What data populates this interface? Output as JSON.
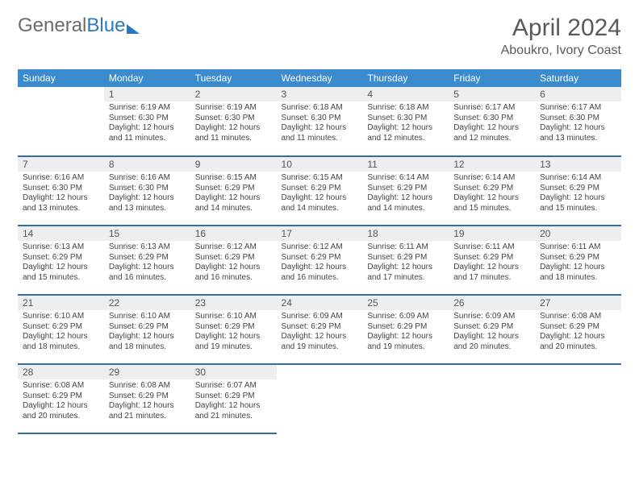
{
  "brand": {
    "part1": "General",
    "part2": "Blue"
  },
  "title": "April 2024",
  "location": "Aboukro, Ivory Coast",
  "colors": {
    "header_bg": "#3b8bcf",
    "rule": "#2f6fa8",
    "daynum_bg": "#eceeef"
  },
  "weekdays": [
    "Sunday",
    "Monday",
    "Tuesday",
    "Wednesday",
    "Thursday",
    "Friday",
    "Saturday"
  ],
  "weeks": [
    [
      null,
      {
        "n": "1",
        "sr": "Sunrise: 6:19 AM",
        "ss": "Sunset: 6:30 PM",
        "d1": "Daylight: 12 hours",
        "d2": "and 11 minutes."
      },
      {
        "n": "2",
        "sr": "Sunrise: 6:19 AM",
        "ss": "Sunset: 6:30 PM",
        "d1": "Daylight: 12 hours",
        "d2": "and 11 minutes."
      },
      {
        "n": "3",
        "sr": "Sunrise: 6:18 AM",
        "ss": "Sunset: 6:30 PM",
        "d1": "Daylight: 12 hours",
        "d2": "and 11 minutes."
      },
      {
        "n": "4",
        "sr": "Sunrise: 6:18 AM",
        "ss": "Sunset: 6:30 PM",
        "d1": "Daylight: 12 hours",
        "d2": "and 12 minutes."
      },
      {
        "n": "5",
        "sr": "Sunrise: 6:17 AM",
        "ss": "Sunset: 6:30 PM",
        "d1": "Daylight: 12 hours",
        "d2": "and 12 minutes."
      },
      {
        "n": "6",
        "sr": "Sunrise: 6:17 AM",
        "ss": "Sunset: 6:30 PM",
        "d1": "Daylight: 12 hours",
        "d2": "and 13 minutes."
      }
    ],
    [
      {
        "n": "7",
        "sr": "Sunrise: 6:16 AM",
        "ss": "Sunset: 6:30 PM",
        "d1": "Daylight: 12 hours",
        "d2": "and 13 minutes."
      },
      {
        "n": "8",
        "sr": "Sunrise: 6:16 AM",
        "ss": "Sunset: 6:30 PM",
        "d1": "Daylight: 12 hours",
        "d2": "and 13 minutes."
      },
      {
        "n": "9",
        "sr": "Sunrise: 6:15 AM",
        "ss": "Sunset: 6:29 PM",
        "d1": "Daylight: 12 hours",
        "d2": "and 14 minutes."
      },
      {
        "n": "10",
        "sr": "Sunrise: 6:15 AM",
        "ss": "Sunset: 6:29 PM",
        "d1": "Daylight: 12 hours",
        "d2": "and 14 minutes."
      },
      {
        "n": "11",
        "sr": "Sunrise: 6:14 AM",
        "ss": "Sunset: 6:29 PM",
        "d1": "Daylight: 12 hours",
        "d2": "and 14 minutes."
      },
      {
        "n": "12",
        "sr": "Sunrise: 6:14 AM",
        "ss": "Sunset: 6:29 PM",
        "d1": "Daylight: 12 hours",
        "d2": "and 15 minutes."
      },
      {
        "n": "13",
        "sr": "Sunrise: 6:14 AM",
        "ss": "Sunset: 6:29 PM",
        "d1": "Daylight: 12 hours",
        "d2": "and 15 minutes."
      }
    ],
    [
      {
        "n": "14",
        "sr": "Sunrise: 6:13 AM",
        "ss": "Sunset: 6:29 PM",
        "d1": "Daylight: 12 hours",
        "d2": "and 15 minutes."
      },
      {
        "n": "15",
        "sr": "Sunrise: 6:13 AM",
        "ss": "Sunset: 6:29 PM",
        "d1": "Daylight: 12 hours",
        "d2": "and 16 minutes."
      },
      {
        "n": "16",
        "sr": "Sunrise: 6:12 AM",
        "ss": "Sunset: 6:29 PM",
        "d1": "Daylight: 12 hours",
        "d2": "and 16 minutes."
      },
      {
        "n": "17",
        "sr": "Sunrise: 6:12 AM",
        "ss": "Sunset: 6:29 PM",
        "d1": "Daylight: 12 hours",
        "d2": "and 16 minutes."
      },
      {
        "n": "18",
        "sr": "Sunrise: 6:11 AM",
        "ss": "Sunset: 6:29 PM",
        "d1": "Daylight: 12 hours",
        "d2": "and 17 minutes."
      },
      {
        "n": "19",
        "sr": "Sunrise: 6:11 AM",
        "ss": "Sunset: 6:29 PM",
        "d1": "Daylight: 12 hours",
        "d2": "and 17 minutes."
      },
      {
        "n": "20",
        "sr": "Sunrise: 6:11 AM",
        "ss": "Sunset: 6:29 PM",
        "d1": "Daylight: 12 hours",
        "d2": "and 18 minutes."
      }
    ],
    [
      {
        "n": "21",
        "sr": "Sunrise: 6:10 AM",
        "ss": "Sunset: 6:29 PM",
        "d1": "Daylight: 12 hours",
        "d2": "and 18 minutes."
      },
      {
        "n": "22",
        "sr": "Sunrise: 6:10 AM",
        "ss": "Sunset: 6:29 PM",
        "d1": "Daylight: 12 hours",
        "d2": "and 18 minutes."
      },
      {
        "n": "23",
        "sr": "Sunrise: 6:10 AM",
        "ss": "Sunset: 6:29 PM",
        "d1": "Daylight: 12 hours",
        "d2": "and 19 minutes."
      },
      {
        "n": "24",
        "sr": "Sunrise: 6:09 AM",
        "ss": "Sunset: 6:29 PM",
        "d1": "Daylight: 12 hours",
        "d2": "and 19 minutes."
      },
      {
        "n": "25",
        "sr": "Sunrise: 6:09 AM",
        "ss": "Sunset: 6:29 PM",
        "d1": "Daylight: 12 hours",
        "d2": "and 19 minutes."
      },
      {
        "n": "26",
        "sr": "Sunrise: 6:09 AM",
        "ss": "Sunset: 6:29 PM",
        "d1": "Daylight: 12 hours",
        "d2": "and 20 minutes."
      },
      {
        "n": "27",
        "sr": "Sunrise: 6:08 AM",
        "ss": "Sunset: 6:29 PM",
        "d1": "Daylight: 12 hours",
        "d2": "and 20 minutes."
      }
    ],
    [
      {
        "n": "28",
        "sr": "Sunrise: 6:08 AM",
        "ss": "Sunset: 6:29 PM",
        "d1": "Daylight: 12 hours",
        "d2": "and 20 minutes."
      },
      {
        "n": "29",
        "sr": "Sunrise: 6:08 AM",
        "ss": "Sunset: 6:29 PM",
        "d1": "Daylight: 12 hours",
        "d2": "and 21 minutes."
      },
      {
        "n": "30",
        "sr": "Sunrise: 6:07 AM",
        "ss": "Sunset: 6:29 PM",
        "d1": "Daylight: 12 hours",
        "d2": "and 21 minutes."
      },
      null,
      null,
      null,
      null
    ]
  ]
}
